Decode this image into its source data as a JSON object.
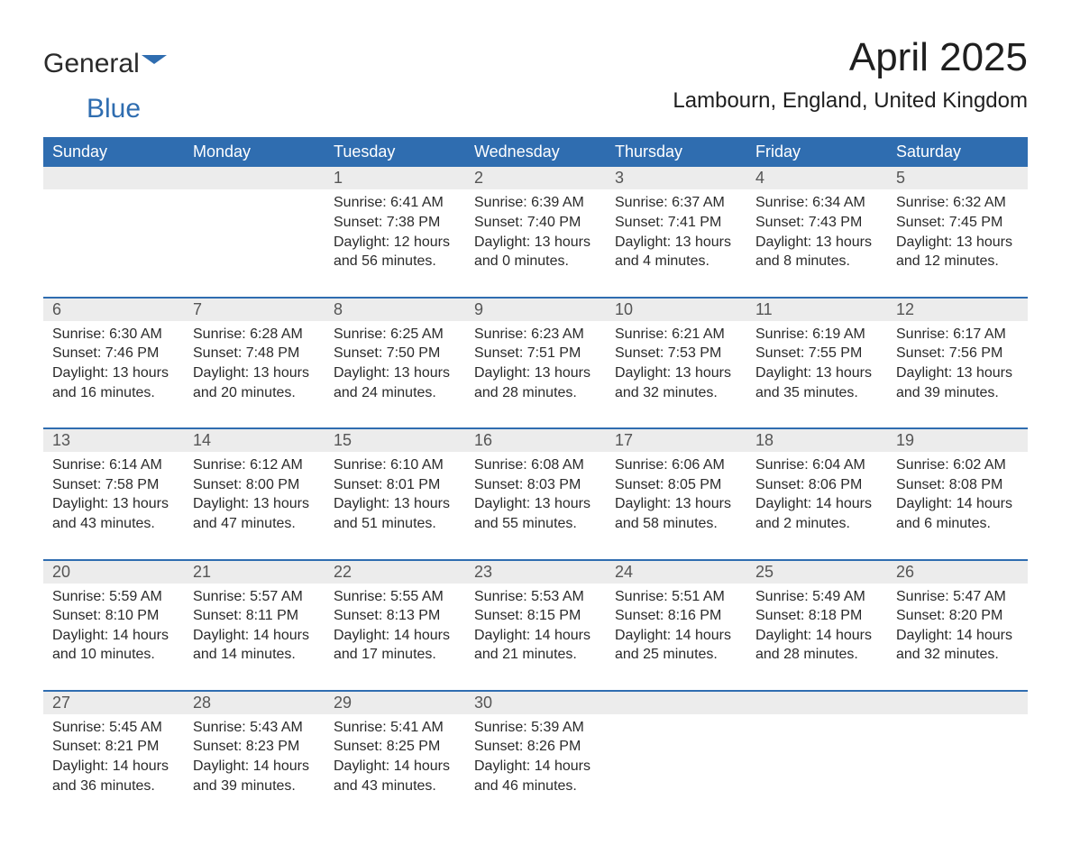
{
  "logo": {
    "text_general": "General",
    "text_blue": "Blue",
    "flag_color": "#2f6db0"
  },
  "title": {
    "month": "April 2025",
    "location": "Lambourn, England, United Kingdom"
  },
  "colors": {
    "header_bg": "#2f6db0",
    "header_text": "#ffffff",
    "daynum_bg": "#ececec",
    "row_border": "#2f6db0",
    "body_text": "#2a2a2a",
    "page_bg": "#ffffff"
  },
  "typography": {
    "title_fontsize": 44,
    "location_fontsize": 24,
    "header_fontsize": 18,
    "daynum_fontsize": 18,
    "cell_fontsize": 16
  },
  "table": {
    "type": "calendar-table",
    "columns": [
      "Sunday",
      "Monday",
      "Tuesday",
      "Wednesday",
      "Thursday",
      "Friday",
      "Saturday"
    ],
    "weeks": [
      [
        null,
        null,
        {
          "day": "1",
          "sunrise": "6:41 AM",
          "sunset": "7:38 PM",
          "daylight": "12 hours and 56 minutes."
        },
        {
          "day": "2",
          "sunrise": "6:39 AM",
          "sunset": "7:40 PM",
          "daylight": "13 hours and 0 minutes."
        },
        {
          "day": "3",
          "sunrise": "6:37 AM",
          "sunset": "7:41 PM",
          "daylight": "13 hours and 4 minutes."
        },
        {
          "day": "4",
          "sunrise": "6:34 AM",
          "sunset": "7:43 PM",
          "daylight": "13 hours and 8 minutes."
        },
        {
          "day": "5",
          "sunrise": "6:32 AM",
          "sunset": "7:45 PM",
          "daylight": "13 hours and 12 minutes."
        }
      ],
      [
        {
          "day": "6",
          "sunrise": "6:30 AM",
          "sunset": "7:46 PM",
          "daylight": "13 hours and 16 minutes."
        },
        {
          "day": "7",
          "sunrise": "6:28 AM",
          "sunset": "7:48 PM",
          "daylight": "13 hours and 20 minutes."
        },
        {
          "day": "8",
          "sunrise": "6:25 AM",
          "sunset": "7:50 PM",
          "daylight": "13 hours and 24 minutes."
        },
        {
          "day": "9",
          "sunrise": "6:23 AM",
          "sunset": "7:51 PM",
          "daylight": "13 hours and 28 minutes."
        },
        {
          "day": "10",
          "sunrise": "6:21 AM",
          "sunset": "7:53 PM",
          "daylight": "13 hours and 32 minutes."
        },
        {
          "day": "11",
          "sunrise": "6:19 AM",
          "sunset": "7:55 PM",
          "daylight": "13 hours and 35 minutes."
        },
        {
          "day": "12",
          "sunrise": "6:17 AM",
          "sunset": "7:56 PM",
          "daylight": "13 hours and 39 minutes."
        }
      ],
      [
        {
          "day": "13",
          "sunrise": "6:14 AM",
          "sunset": "7:58 PM",
          "daylight": "13 hours and 43 minutes."
        },
        {
          "day": "14",
          "sunrise": "6:12 AM",
          "sunset": "8:00 PM",
          "daylight": "13 hours and 47 minutes."
        },
        {
          "day": "15",
          "sunrise": "6:10 AM",
          "sunset": "8:01 PM",
          "daylight": "13 hours and 51 minutes."
        },
        {
          "day": "16",
          "sunrise": "6:08 AM",
          "sunset": "8:03 PM",
          "daylight": "13 hours and 55 minutes."
        },
        {
          "day": "17",
          "sunrise": "6:06 AM",
          "sunset": "8:05 PM",
          "daylight": "13 hours and 58 minutes."
        },
        {
          "day": "18",
          "sunrise": "6:04 AM",
          "sunset": "8:06 PM",
          "daylight": "14 hours and 2 minutes."
        },
        {
          "day": "19",
          "sunrise": "6:02 AM",
          "sunset": "8:08 PM",
          "daylight": "14 hours and 6 minutes."
        }
      ],
      [
        {
          "day": "20",
          "sunrise": "5:59 AM",
          "sunset": "8:10 PM",
          "daylight": "14 hours and 10 minutes."
        },
        {
          "day": "21",
          "sunrise": "5:57 AM",
          "sunset": "8:11 PM",
          "daylight": "14 hours and 14 minutes."
        },
        {
          "day": "22",
          "sunrise": "5:55 AM",
          "sunset": "8:13 PM",
          "daylight": "14 hours and 17 minutes."
        },
        {
          "day": "23",
          "sunrise": "5:53 AM",
          "sunset": "8:15 PM",
          "daylight": "14 hours and 21 minutes."
        },
        {
          "day": "24",
          "sunrise": "5:51 AM",
          "sunset": "8:16 PM",
          "daylight": "14 hours and 25 minutes."
        },
        {
          "day": "25",
          "sunrise": "5:49 AM",
          "sunset": "8:18 PM",
          "daylight": "14 hours and 28 minutes."
        },
        {
          "day": "26",
          "sunrise": "5:47 AM",
          "sunset": "8:20 PM",
          "daylight": "14 hours and 32 minutes."
        }
      ],
      [
        {
          "day": "27",
          "sunrise": "5:45 AM",
          "sunset": "8:21 PM",
          "daylight": "14 hours and 36 minutes."
        },
        {
          "day": "28",
          "sunrise": "5:43 AM",
          "sunset": "8:23 PM",
          "daylight": "14 hours and 39 minutes."
        },
        {
          "day": "29",
          "sunrise": "5:41 AM",
          "sunset": "8:25 PM",
          "daylight": "14 hours and 43 minutes."
        },
        {
          "day": "30",
          "sunrise": "5:39 AM",
          "sunset": "8:26 PM",
          "daylight": "14 hours and 46 minutes."
        },
        null,
        null,
        null
      ]
    ],
    "labels": {
      "sunrise_prefix": "Sunrise: ",
      "sunset_prefix": "Sunset: ",
      "daylight_prefix": "Daylight: "
    }
  }
}
